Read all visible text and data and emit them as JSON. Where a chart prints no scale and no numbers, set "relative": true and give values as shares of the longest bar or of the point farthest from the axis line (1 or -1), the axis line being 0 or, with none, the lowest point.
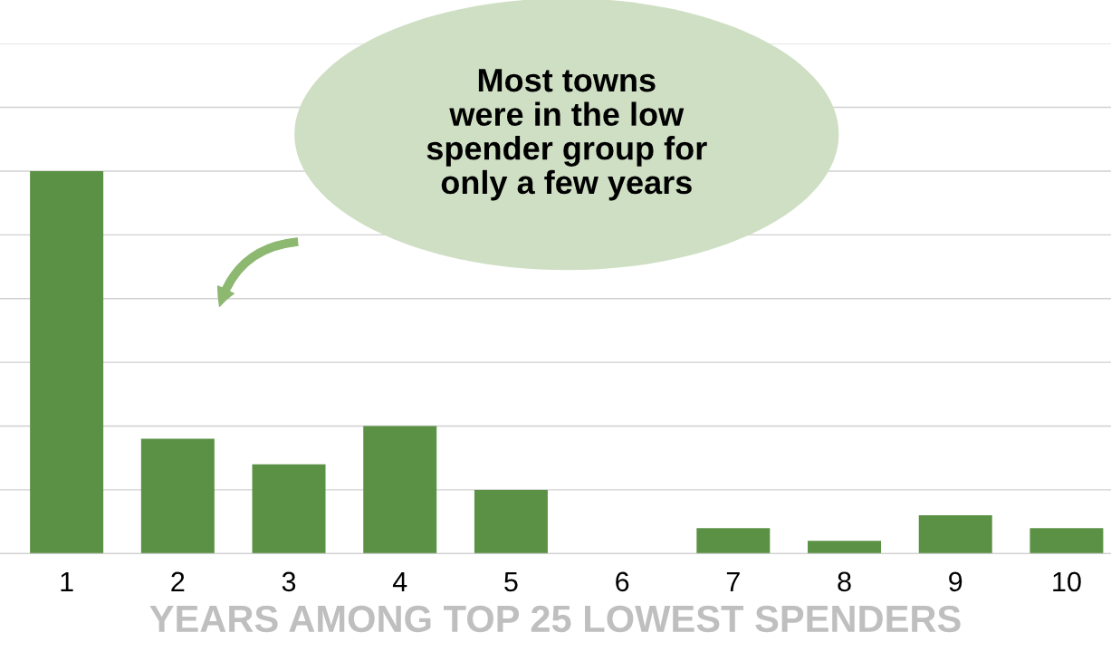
{
  "chart_data": {
    "type": "bar",
    "relative": true,
    "categories": [
      "1",
      "2",
      "3",
      "4",
      "5",
      "6",
      "7",
      "8",
      "9",
      "10"
    ],
    "values": [
      1,
      0.3,
      0.2333,
      0.3333,
      0.1667,
      0,
      0.0667,
      0.0333,
      0.1,
      0.0667
    ],
    "color": "#5b9144",
    "xlabel": "YEARS AMONG TOP 25 LOWEST SPENDERS",
    "annotations": [
      "Most towns\nwere in the low\nspender group for\nonly a few years"
    ],
    "grid": "y",
    "legend": false
  }
}
